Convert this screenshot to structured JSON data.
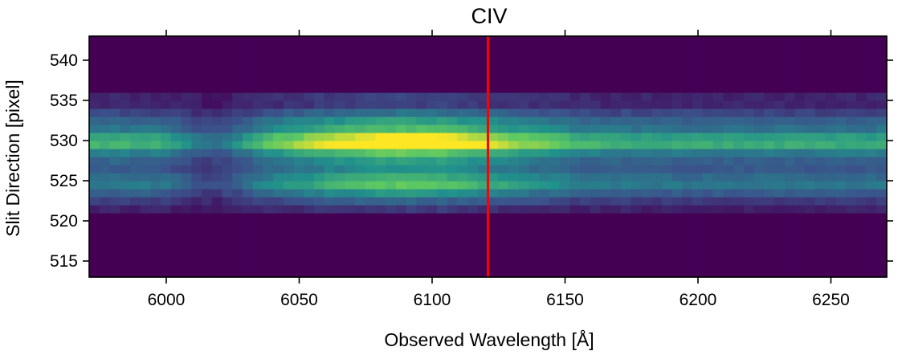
{
  "chart_data": {
    "type": "heatmap",
    "title": "CIV",
    "xlabel": "Observed Wavelength [Å]",
    "ylabel": "Slit Direction [pixel]",
    "xlim": [
      5971,
      6271
    ],
    "ylim": [
      513,
      543
    ],
    "xticks": [
      6000,
      6050,
      6100,
      6150,
      6200,
      6250
    ],
    "yticks": [
      515,
      520,
      525,
      530,
      535,
      540
    ],
    "colormap": "viridis",
    "grid": false,
    "vertical_marker": {
      "x": 6121,
      "color": "#ff0000"
    },
    "colors": {
      "background": "#440154",
      "bright": "#fde725"
    }
  }
}
